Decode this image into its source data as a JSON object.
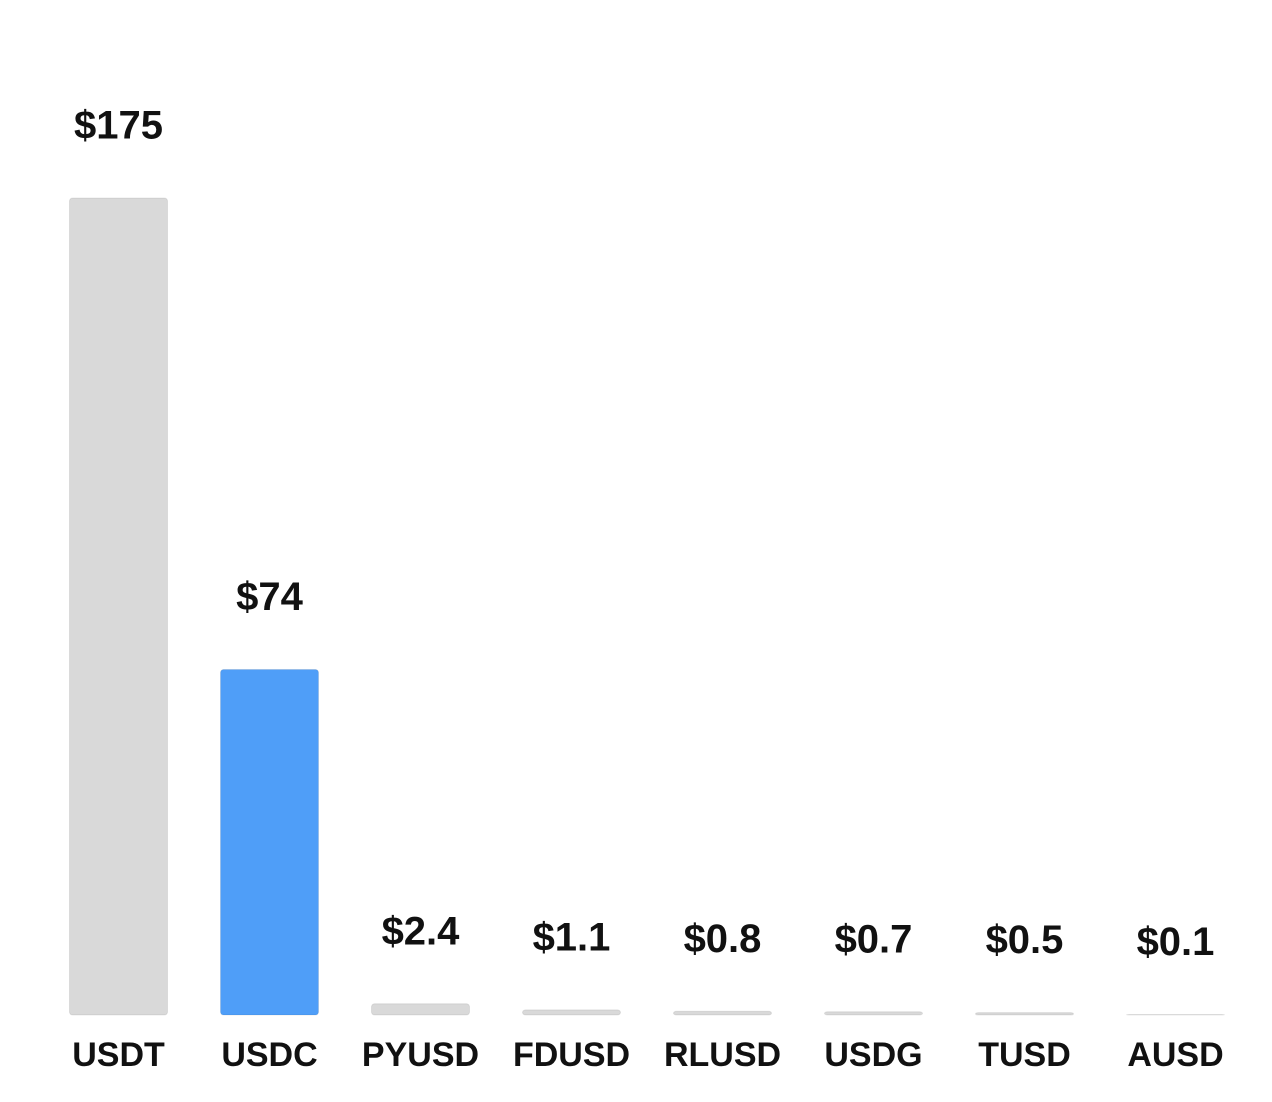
{
  "chart_data": {
    "type": "bar",
    "categories": [
      "USDT",
      "USDC",
      "PYUSD",
      "FDUSD",
      "RLUSD",
      "USDG",
      "TUSD",
      "AUSD"
    ],
    "values": [
      175,
      74,
      2.4,
      1.1,
      0.8,
      0.7,
      0.5,
      0.1
    ],
    "value_labels": [
      "$175",
      "$74",
      "$2.4",
      "$1.1",
      "$0.8",
      "$0.7",
      "$0.5",
      "$0.1"
    ],
    "colors": [
      "#d9d9d9",
      "#4f9ef8",
      "#d9d9d9",
      "#d9d9d9",
      "#d9d9d9",
      "#d9d9d9",
      "#d9d9d9",
      "#d9d9d9"
    ]
  }
}
